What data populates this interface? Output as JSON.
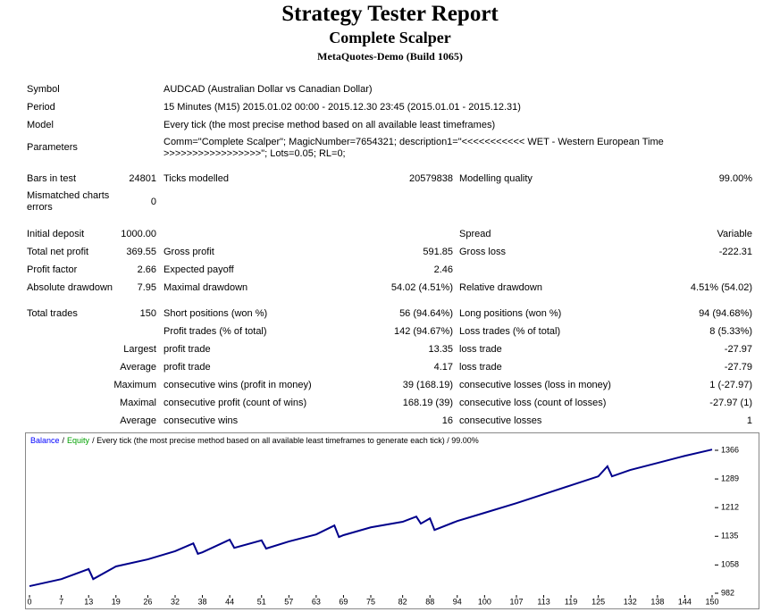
{
  "header": {
    "title": "Strategy Tester Report",
    "subtitle": "Complete Scalper",
    "server": "MetaQuotes-Demo (Build 1065)"
  },
  "info": [
    [
      "Symbol",
      "AUDCAD (Australian Dollar vs Canadian Dollar)"
    ],
    [
      "Period",
      "15 Minutes (M15) 2015.01.02 00:00 - 2015.12.30 23:45 (2015.01.01 - 2015.12.31)"
    ],
    [
      "Model",
      "Every tick (the most precise method based on all available least timeframes)"
    ],
    [
      "Parameters",
      "Comm=\"Complete Scalper\"; MagicNumber=7654321; description1=\"<<<<<<<<<<< WET - Western European Time >>>>>>>>>>>>>>>>>\"; Lots=0.05; RL=0;"
    ]
  ],
  "stats": [
    [
      "Bars in test",
      "24801",
      "Ticks modelled",
      "20579838",
      "Modelling quality",
      "99.00%"
    ],
    [
      "Mismatched charts errors",
      "0",
      null,
      null,
      null,
      null
    ],
    [
      "Initial deposit",
      "1000.00",
      null,
      null,
      "Spread",
      "Variable"
    ],
    [
      "Total net profit",
      "369.55",
      "Gross profit",
      "591.85",
      "Gross loss",
      "-222.31"
    ],
    [
      "Profit factor",
      "2.66",
      "Expected payoff",
      "2.46",
      null,
      null
    ],
    [
      "Absolute drawdown",
      "7.95",
      "Maximal drawdown",
      "54.02 (4.51%)",
      "Relative drawdown",
      "4.51% (54.02)"
    ],
    [
      "Total trades",
      "150",
      "Short positions (won %)",
      "56 (94.64%)",
      "Long positions (won %)",
      "94 (94.68%)"
    ],
    [
      null,
      null,
      "Profit trades (% of total)",
      "142 (94.67%)",
      "Loss trades (% of total)",
      "8 (5.33%)"
    ],
    [
      null,
      "Largest",
      "profit trade",
      "13.35",
      "loss trade",
      "-27.97"
    ],
    [
      null,
      "Average",
      "profit trade",
      "4.17",
      "loss trade",
      "-27.79"
    ],
    [
      null,
      "Maximum",
      "consecutive wins (profit in money)",
      "39 (168.19)",
      "consecutive losses (loss in money)",
      "1 (-27.97)"
    ],
    [
      null,
      "Maximal",
      "consecutive profit (count of wins)",
      "168.19 (39)",
      "consecutive loss (count of losses)",
      "-27.97 (1)"
    ],
    [
      null,
      "Average",
      "consecutive wins",
      "16",
      "consecutive losses",
      "1"
    ]
  ],
  "chart_data": {
    "type": "line",
    "legend_separator": "/",
    "subtitle": "/ Every tick (the most precise method based on all available least timeframes to generate each tick) / 99.00%",
    "legend": [
      {
        "name": "Balance",
        "color": "#0000ff"
      },
      {
        "name": "Equity",
        "color": "#00a000"
      }
    ],
    "x": [
      0,
      7,
      13,
      14,
      19,
      26,
      32,
      36,
      37,
      38,
      44,
      45,
      51,
      52,
      57,
      63,
      67,
      68,
      69,
      75,
      82,
      85,
      86,
      88,
      89,
      94,
      100,
      107,
      113,
      119,
      125,
      127,
      128,
      132,
      138,
      144,
      150
    ],
    "series": [
      {
        "name": "Balance",
        "color": "#00008b",
        "values": [
          1001,
          1020,
          1047,
          1020,
          1054,
          1073,
          1095,
          1116,
          1088,
          1092,
          1126,
          1104,
          1124,
          1102,
          1121,
          1140,
          1164,
          1133,
          1138,
          1159,
          1174,
          1188,
          1169,
          1183,
          1152,
          1176,
          1198,
          1224,
          1248,
          1272,
          1296,
          1323,
          1296,
          1313,
          1332,
          1351,
          1368
        ]
      }
    ],
    "xlim": [
      0,
      150
    ],
    "ylim": [
      982,
      1366
    ],
    "xticks": [
      0,
      7,
      13,
      19,
      26,
      32,
      38,
      44,
      51,
      57,
      63,
      69,
      75,
      82,
      88,
      94,
      100,
      107,
      113,
      119,
      125,
      132,
      138,
      144,
      150
    ],
    "yticks": [
      982,
      1058,
      1135,
      1212,
      1289,
      1366
    ]
  }
}
